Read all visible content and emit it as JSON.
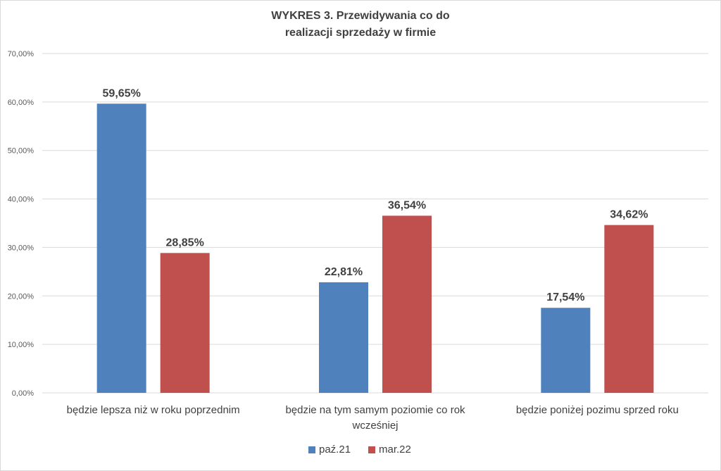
{
  "colors": {
    "series_1": "#4f81bd",
    "series_2": "#c0504d",
    "text": "#404040",
    "grid": "#d9d9d9"
  },
  "chart_data": {
    "type": "bar",
    "title_lines": [
      "WYKRES 3. Przewidywania co do",
      "realizacji sprzedaży w firmie"
    ],
    "categories": [
      [
        "będzie lepsza niż w roku poprzednim"
      ],
      [
        "będzie na tym samym poziomie co rok",
        "wcześniej"
      ],
      [
        "będzie poniżej pozimu sprzed roku"
      ]
    ],
    "series": [
      {
        "name": "paź.21",
        "values": [
          59.65,
          22.81,
          17.54
        ],
        "labels": [
          "59,65%",
          "22,81%",
          "17,54%"
        ]
      },
      {
        "name": "mar.22",
        "values": [
          28.85,
          36.54,
          34.62
        ],
        "labels": [
          "28,85%",
          "36,54%",
          "34,62%"
        ]
      }
    ],
    "y_ticks": [
      {
        "value": 0,
        "label": "0,00%"
      },
      {
        "value": 10,
        "label": "10,00%"
      },
      {
        "value": 20,
        "label": "20,00%"
      },
      {
        "value": 30,
        "label": "30,00%"
      },
      {
        "value": 40,
        "label": "40,00%"
      },
      {
        "value": 50,
        "label": "50,00%"
      },
      {
        "value": 60,
        "label": "60,00%"
      },
      {
        "value": 70,
        "label": "70,00%"
      }
    ],
    "ylim": [
      0,
      70
    ],
    "grid": true,
    "legend_position": "bottom"
  }
}
